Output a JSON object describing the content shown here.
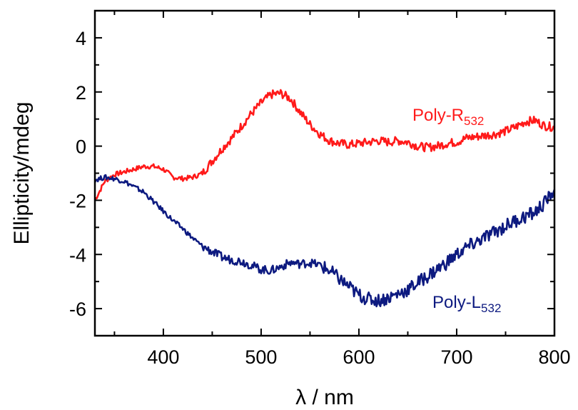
{
  "chart_data": {
    "type": "line",
    "title": "",
    "xlabel": "λ / nm",
    "ylabel": "Ellipticity/mdeg",
    "xlim": [
      330,
      800
    ],
    "ylim": [
      -7,
      5
    ],
    "x_ticks": [
      400,
      500,
      600,
      700,
      800
    ],
    "y_ticks": [
      -6,
      -4,
      -2,
      0,
      2,
      4
    ],
    "grid": false,
    "legend": "none",
    "series": [
      {
        "name": "Poly-R",
        "label_main": "Poly-R",
        "label_subscript": "532",
        "color": "#ff1a1a",
        "x": [
          330,
          340,
          350,
          360,
          370,
          380,
          390,
          400,
          410,
          420,
          430,
          440,
          450,
          460,
          470,
          480,
          490,
          500,
          510,
          520,
          530,
          540,
          550,
          560,
          570,
          580,
          590,
          600,
          610,
          620,
          630,
          640,
          650,
          660,
          670,
          680,
          690,
          700,
          710,
          720,
          730,
          740,
          750,
          760,
          770,
          780,
          790,
          800
        ],
        "y": [
          -2.0,
          -1.3,
          -1.05,
          -0.95,
          -0.85,
          -0.75,
          -0.75,
          -0.85,
          -1.15,
          -1.2,
          -1.15,
          -1.0,
          -0.55,
          -0.1,
          0.3,
          0.75,
          1.2,
          1.6,
          1.9,
          1.95,
          1.75,
          1.25,
          0.8,
          0.45,
          0.2,
          0.1,
          0.05,
          0.1,
          0.15,
          0.2,
          0.15,
          0.2,
          0.15,
          0.0,
          -0.05,
          0.0,
          0.1,
          0.15,
          0.3,
          0.35,
          0.4,
          0.45,
          0.55,
          0.7,
          0.9,
          0.95,
          0.75,
          0.7
        ]
      },
      {
        "name": "Poly-L",
        "label_main": "Poly-L",
        "label_subscript": "532",
        "color": "#0d1a80",
        "x": [
          330,
          340,
          350,
          360,
          370,
          380,
          390,
          400,
          410,
          420,
          430,
          440,
          450,
          460,
          470,
          480,
          490,
          500,
          510,
          520,
          530,
          540,
          550,
          560,
          570,
          580,
          590,
          600,
          610,
          620,
          630,
          640,
          650,
          660,
          670,
          680,
          690,
          700,
          710,
          720,
          730,
          740,
          750,
          760,
          770,
          780,
          790,
          800
        ],
        "y": [
          -1.25,
          -1.15,
          -1.2,
          -1.3,
          -1.5,
          -1.7,
          -2.05,
          -2.4,
          -2.75,
          -3.05,
          -3.4,
          -3.7,
          -3.9,
          -4.1,
          -4.2,
          -4.25,
          -4.4,
          -4.55,
          -4.6,
          -4.45,
          -4.3,
          -4.35,
          -4.3,
          -4.4,
          -4.6,
          -4.9,
          -5.2,
          -5.5,
          -5.65,
          -5.7,
          -5.6,
          -5.45,
          -5.3,
          -5.05,
          -4.8,
          -4.55,
          -4.3,
          -4.0,
          -3.75,
          -3.55,
          -3.35,
          -3.15,
          -2.95,
          -2.75,
          -2.6,
          -2.45,
          -2.1,
          -1.6
        ]
      }
    ]
  }
}
